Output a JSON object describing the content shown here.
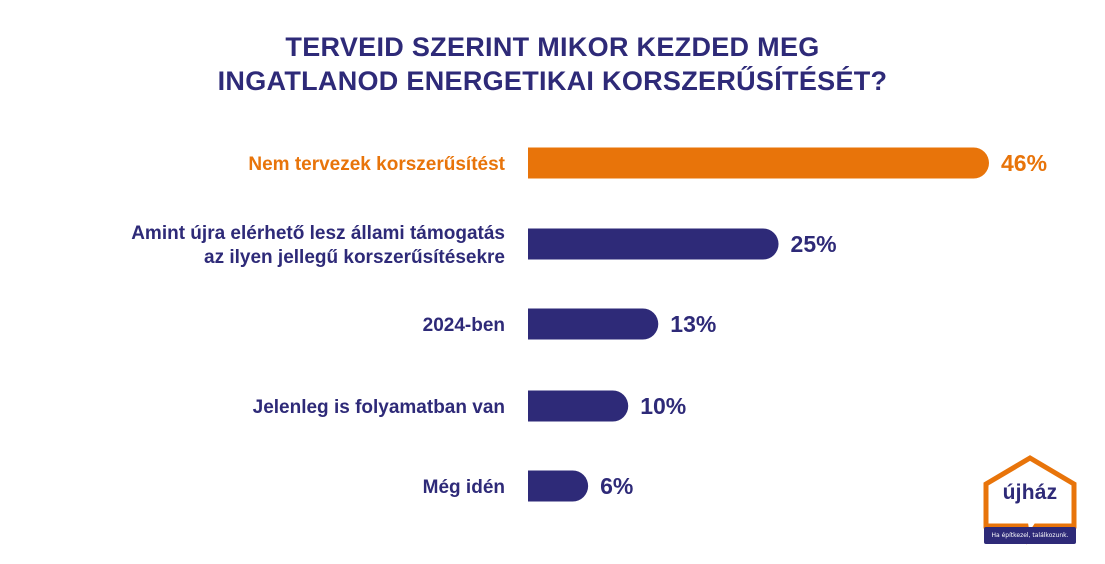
{
  "chart_data": {
    "type": "bar",
    "orientation": "horizontal",
    "title_lines": [
      "TERVEID SZERINT MIKOR KEZDED MEG",
      "INGATLANOD ENERGETIKAI KORSZERŰSÍTÉSÉT?"
    ],
    "categories": [
      [
        "Nem tervezek korszerűsítést"
      ],
      [
        "Amint újra elérhető lesz állami támogatás",
        "az ilyen jellegű korszerűsítésekre"
      ],
      [
        "2024-ben"
      ],
      [
        "Jelenleg is folyamatban van"
      ],
      [
        "Még idén"
      ]
    ],
    "values": [
      46,
      25,
      13,
      10,
      6
    ],
    "value_labels": [
      "46%",
      "25%",
      "13%",
      "10%",
      "6%"
    ],
    "xlim": [
      0,
      46
    ],
    "highlight_index": 0,
    "grid": false,
    "legend": "none"
  },
  "colors": {
    "title": "#2e2a78",
    "bar": "#2e2a78",
    "highlight": "#e8740a",
    "logo_house": "#e8740a",
    "logo_text": "#2e2a78"
  },
  "logo": {
    "brand": "újház",
    "tagline": "Ha építkezel, találkozunk."
  }
}
